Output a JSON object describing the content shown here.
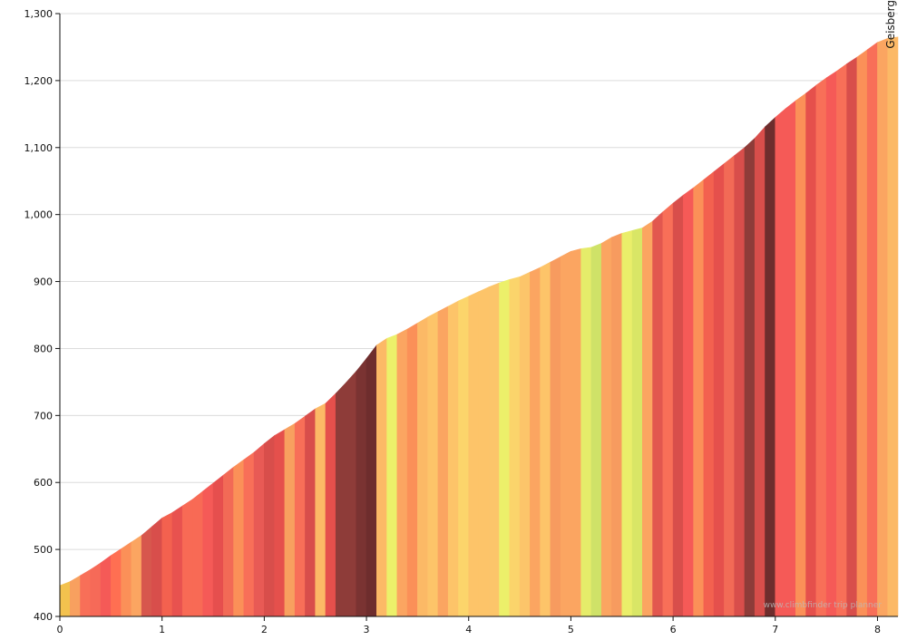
{
  "chart_data": {
    "type": "area",
    "xlim": [
      0,
      8.2
    ],
    "ylim": [
      400,
      1300
    ],
    "x_ticks": [
      0,
      1,
      2,
      3,
      4,
      5,
      6,
      7,
      8
    ],
    "x_tick_labels": [
      "0",
      "1",
      "2",
      "3",
      "4",
      "5",
      "6",
      "7",
      "8"
    ],
    "y_ticks": [
      400,
      500,
      600,
      700,
      800,
      900,
      1000,
      1100,
      1200,
      1300
    ],
    "y_tick_labels": [
      "400",
      "500",
      "600",
      "700",
      "800",
      "900",
      "1,000",
      "1,100",
      "1,200",
      "1,300"
    ],
    "grid": "horizontal",
    "summit_label": "Geisberg",
    "watermark": "www.climbfinder trip planner",
    "profile": {
      "x": [
        0,
        0.1,
        0.2,
        0.3,
        0.4,
        0.5,
        0.6,
        0.7,
        0.8,
        0.9,
        1.0,
        1.1,
        1.2,
        1.3,
        1.4,
        1.5,
        1.6,
        1.7,
        1.8,
        1.9,
        2.0,
        2.1,
        2.2,
        2.3,
        2.4,
        2.5,
        2.6,
        2.7,
        2.8,
        2.9,
        3.0,
        3.1,
        3.2,
        3.3,
        3.4,
        3.5,
        3.6,
        3.7,
        3.8,
        3.9,
        4.0,
        4.1,
        4.2,
        4.3,
        4.4,
        4.5,
        4.6,
        4.7,
        4.8,
        4.9,
        5.0,
        5.1,
        5.2,
        5.3,
        5.4,
        5.5,
        5.6,
        5.7,
        5.8,
        5.9,
        6.0,
        6.1,
        6.2,
        6.3,
        6.4,
        6.5,
        6.6,
        6.7,
        6.8,
        6.9,
        7.0,
        7.1,
        7.2,
        7.3,
        7.4,
        7.5,
        7.6,
        7.7,
        7.8,
        7.9,
        8.0,
        8.1,
        8.2
      ],
      "y": [
        446,
        452,
        461,
        470,
        480,
        491,
        501,
        511,
        521,
        534,
        547,
        555,
        565,
        575,
        587,
        599,
        611,
        623,
        634,
        645,
        658,
        670,
        679,
        688,
        699,
        710,
        718,
        733,
        749,
        766,
        785,
        805,
        815,
        821,
        829,
        838,
        847,
        855,
        863,
        871,
        878,
        885,
        892,
        898,
        903,
        907,
        914,
        921,
        929,
        937,
        945,
        949,
        951,
        957,
        966,
        972,
        976,
        980,
        990,
        1004,
        1017,
        1029,
        1040,
        1052,
        1064,
        1076,
        1088,
        1100,
        1114,
        1131,
        1145,
        1158,
        1170,
        1181,
        1193,
        1204,
        1214,
        1225,
        1235,
        1246,
        1257,
        1263,
        1265
      ]
    },
    "colors": [
      "#f3c24e",
      "#f8a05f",
      "#f86f58",
      "#f66a58",
      "#f55a57",
      "#ff6f52",
      "#fb9058",
      "#fba561",
      "#d7574d",
      "#d84e4b",
      "#f3614f",
      "#e8524f",
      "#f86a55",
      "#f86a55",
      "#f55a57",
      "#e64f4e",
      "#f26a56",
      "#fb9058",
      "#f86f58",
      "#e85a55",
      "#d84e4b",
      "#e5504c",
      "#f8a05f",
      "#f86f58",
      "#d84e4b",
      "#fcb966",
      "#e5504c",
      "#8e3c39",
      "#8e3c39",
      "#7a3332",
      "#6e2d2d",
      "#fcb966",
      "#ecf06a",
      "#fba561",
      "#fb9058",
      "#fcb966",
      "#fdc469",
      "#fba561",
      "#fdc469",
      "#fcd56b",
      "#fdc469",
      "#fdc469",
      "#fcc56a",
      "#ecf06a",
      "#fbd46b",
      "#fcc56a",
      "#fba561",
      "#fdc469",
      "#f79b5f",
      "#fba561",
      "#fba561",
      "#e5ec6a",
      "#cfe268",
      "#fba561",
      "#f79b5f",
      "#eaee6a",
      "#d9e666",
      "#fba561",
      "#e2574f",
      "#f86f58",
      "#d84e4b",
      "#f55a57",
      "#fb9058",
      "#f3614f",
      "#e5504c",
      "#f26a56",
      "#d84e4b",
      "#8e3c39",
      "#d84e4b",
      "#6e2d2d",
      "#f55a57",
      "#f55a57",
      "#fb9058",
      "#e5504c",
      "#f86f58",
      "#f55a57",
      "#f86f58",
      "#d84e4b",
      "#fb9058",
      "#f86f58",
      "#fba561",
      "#fcb966",
      "#fdf472"
    ]
  }
}
